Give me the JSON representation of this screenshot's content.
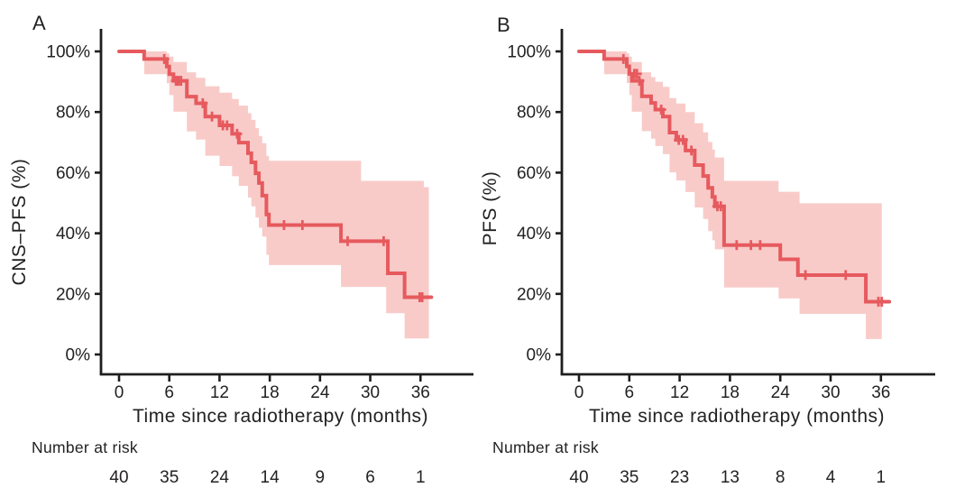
{
  "figure": {
    "background": "#ffffff",
    "line_color": "#e65a5e",
    "band_color": "#f8cbc9",
    "axis_color": "#1f1d1e",
    "text_color": "#232122"
  },
  "chart_data": [
    {
      "type": "line",
      "subtype": "kaplan-meier-step",
      "panel_label": "A",
      "xlabel": "Time since radiotherapy (months)",
      "ylabel": "CNS–PFS (%)",
      "xlim": [
        0,
        40
      ],
      "ylim": [
        0,
        100
      ],
      "grid": false,
      "legend": "none",
      "xticks": [
        0,
        6,
        12,
        18,
        24,
        30,
        36
      ],
      "yticks": [
        0,
        20,
        40,
        60,
        80,
        100
      ],
      "ytick_suffix": "%",
      "line_color": "#e65a5e",
      "band_color": "#f8cbc9",
      "steps": [
        [
          0,
          100
        ],
        [
          3,
          97.5
        ],
        [
          5.7,
          95
        ],
        [
          6,
          92.5
        ],
        [
          6.5,
          90.3
        ],
        [
          8.1,
          85.1
        ],
        [
          9.2,
          82.9
        ],
        [
          10.3,
          78.5
        ],
        [
          12,
          75.6
        ],
        [
          13.5,
          72.8
        ],
        [
          14.3,
          69.9
        ],
        [
          15.4,
          66.4
        ],
        [
          15.8,
          63.4
        ],
        [
          16.3,
          59.8
        ],
        [
          16.7,
          56.6
        ],
        [
          17.1,
          52.4
        ],
        [
          17.6,
          46.2
        ],
        [
          17.9,
          42.7
        ],
        [
          26.5,
          37.4
        ],
        [
          32.1,
          26.8
        ],
        [
          34.1,
          18.9
        ]
      ],
      "end_time": 37.3,
      "censors": [
        [
          5.4,
          97.5
        ],
        [
          6.8,
          90.3
        ],
        [
          7.1,
          90.3
        ],
        [
          7.4,
          90.3
        ],
        [
          10,
          82.9
        ],
        [
          11.1,
          78.5
        ],
        [
          12.4,
          75.6
        ],
        [
          12.9,
          75.6
        ],
        [
          14.1,
          72.8
        ],
        [
          19.7,
          42.7
        ],
        [
          21.9,
          42.7
        ],
        [
          27.3,
          37.4
        ],
        [
          31.6,
          37.4
        ],
        [
          35.9,
          18.9
        ],
        [
          36.2,
          18.9
        ]
      ],
      "ci": [
        [
          3,
          92.5,
          100
        ],
        [
          5.7,
          89.5,
          99.4
        ],
        [
          6,
          85.6,
          98.3
        ],
        [
          6.5,
          80.1,
          96.5
        ],
        [
          8.1,
          73.6,
          93.1
        ],
        [
          9.2,
          70.9,
          91.3
        ],
        [
          10.3,
          65.6,
          88.5
        ],
        [
          12,
          62.2,
          86.4
        ],
        [
          13.5,
          58.8,
          84.3
        ],
        [
          14.3,
          55.6,
          82.1
        ],
        [
          15.4,
          51.8,
          79.6
        ],
        [
          15.8,
          48.9,
          77.4
        ],
        [
          16.3,
          45.2,
          74.7
        ],
        [
          16.7,
          41.8,
          72.1
        ],
        [
          17.1,
          38.9,
          69.7
        ],
        [
          17.6,
          32.9,
          65.5
        ],
        [
          17.9,
          29.5,
          63.9
        ],
        [
          26.5,
          22.3,
          63.9
        ],
        [
          28.9,
          22.3,
          57.3
        ],
        [
          31.9,
          13.6,
          57.3
        ],
        [
          34.1,
          5.3,
          57.3
        ],
        [
          36.4,
          5.3,
          55.2
        ]
      ],
      "band_end": 37.0,
      "risk_table": {
        "label": "Number at risk",
        "times": [
          0,
          6,
          12,
          18,
          24,
          30,
          36
        ],
        "counts": [
          40,
          35,
          24,
          14,
          9,
          6,
          1
        ]
      }
    },
    {
      "type": "line",
      "subtype": "kaplan-meier-step",
      "panel_label": "B",
      "xlabel": "Time since radiotherapy (months)",
      "ylabel": "PFS (%)",
      "xlim": [
        0,
        40
      ],
      "ylim": [
        0,
        100
      ],
      "grid": false,
      "legend": "none",
      "xticks": [
        0,
        6,
        12,
        18,
        24,
        30,
        36
      ],
      "yticks": [
        0,
        20,
        40,
        60,
        80,
        100
      ],
      "ytick_suffix": "%",
      "line_color": "#e65a5e",
      "band_color": "#f8cbc9",
      "steps": [
        [
          0,
          100
        ],
        [
          3,
          97.5
        ],
        [
          5.7,
          95.1
        ],
        [
          6,
          92.6
        ],
        [
          6.3,
          90.3
        ],
        [
          7.5,
          85.2
        ],
        [
          8.6,
          83
        ],
        [
          9.1,
          80.8
        ],
        [
          10,
          78.5
        ],
        [
          10.8,
          73.2
        ],
        [
          11.6,
          70.8
        ],
        [
          12.7,
          67.3
        ],
        [
          13.8,
          62.5
        ],
        [
          14.8,
          58.9
        ],
        [
          15.4,
          55
        ],
        [
          15.9,
          52
        ],
        [
          16.2,
          48.9
        ],
        [
          17.3,
          36.1
        ],
        [
          24,
          31.4
        ],
        [
          26.1,
          26.2
        ],
        [
          34.2,
          17.4
        ]
      ],
      "end_time": 37.0,
      "censors": [
        [
          5.3,
          97.5
        ],
        [
          6.6,
          92.6
        ],
        [
          6.9,
          92.6
        ],
        [
          7.2,
          90.3
        ],
        [
          9.8,
          80.8
        ],
        [
          11.9,
          70.8
        ],
        [
          12.4,
          70.8
        ],
        [
          13.4,
          67.3
        ],
        [
          16.5,
          48.9
        ],
        [
          16.9,
          48.9
        ],
        [
          18.8,
          36.1
        ],
        [
          20.5,
          36.1
        ],
        [
          21.6,
          36.1
        ],
        [
          27,
          26.2
        ],
        [
          31.8,
          26.2
        ],
        [
          35.7,
          17.4
        ],
        [
          36.1,
          17.4
        ]
      ],
      "ci": [
        [
          3,
          92.5,
          100
        ],
        [
          5.7,
          89.6,
          99.4
        ],
        [
          6,
          85.6,
          98.3
        ],
        [
          6.3,
          80.1,
          96.5
        ],
        [
          7.5,
          73.7,
          93.1
        ],
        [
          8.6,
          71.2,
          91.5
        ],
        [
          9.1,
          68.8,
          90
        ],
        [
          10,
          66.1,
          88.3
        ],
        [
          10.8,
          60.1,
          84.6
        ],
        [
          11.6,
          57.4,
          82.8
        ],
        [
          12.7,
          53.6,
          80
        ],
        [
          13.8,
          48.5,
          76.3
        ],
        [
          14.8,
          44.7,
          73.3
        ],
        [
          15.4,
          40.7,
          70.1
        ],
        [
          15.9,
          37.7,
          67.6
        ],
        [
          16.2,
          34.7,
          65
        ],
        [
          17.3,
          22.1,
          57.3
        ],
        [
          23.8,
          18.5,
          53.7
        ],
        [
          26.3,
          13.4,
          49.9
        ],
        [
          34.2,
          5.1,
          49.9
        ]
      ],
      "band_end": 36.1,
      "risk_table": {
        "label": "Number at risk",
        "times": [
          0,
          6,
          12,
          18,
          24,
          30,
          36
        ],
        "counts": [
          40,
          35,
          23,
          13,
          8,
          4,
          1
        ]
      }
    }
  ]
}
